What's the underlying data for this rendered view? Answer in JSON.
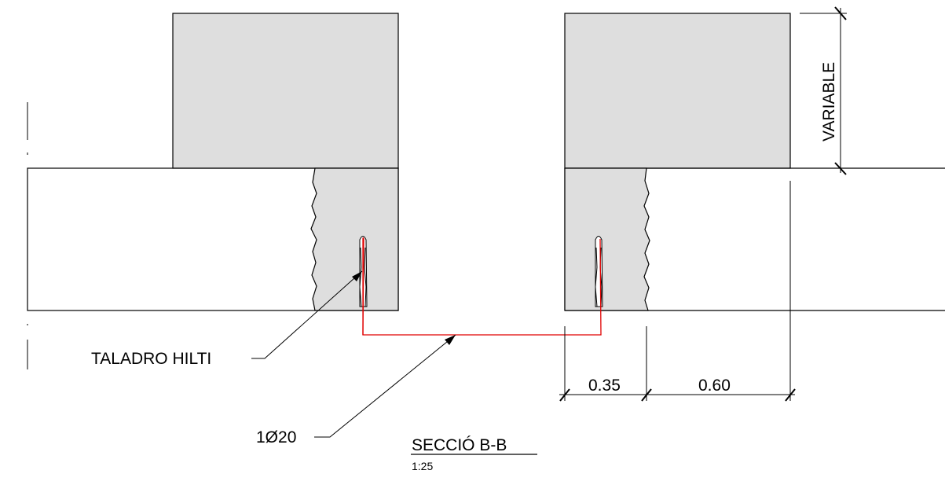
{
  "labels": {
    "drill": "TALADRO HILTI",
    "rebar": "1Ø20",
    "variable": "VARIABLE",
    "dim_left": "0.35",
    "dim_right": "0.60",
    "section_title": "SECCIÓ B-B",
    "section_scale": "1:25"
  },
  "colors": {
    "concrete_fill": "#dedede",
    "rebar": "#e00000",
    "line": "#000000"
  }
}
